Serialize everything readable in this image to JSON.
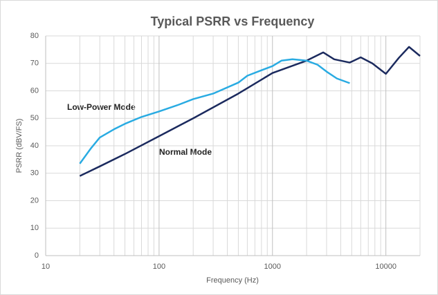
{
  "chart_data": {
    "type": "line",
    "title": "Typical PSRR vs Frequency",
    "x_label": "Frequency (Hz)",
    "y_label": "PSRR (dBV/FS)",
    "annotations": [
      "Low-Power Mode",
      "Normal Mode"
    ],
    "x_log": true,
    "grid": true,
    "minor_grid": true,
    "xlim": [
      10,
      20000
    ],
    "xticks": [
      10,
      100,
      1000,
      10000
    ],
    "ylim": [
      0,
      80
    ],
    "yticks": [
      0,
      10,
      20,
      30,
      40,
      50,
      60,
      70,
      80
    ],
    "series": [
      {
        "name": "Normal Mode",
        "color": "#1b2a5e",
        "x": [
          20,
          30,
          50,
          100,
          200,
          500,
          1000,
          2000,
          2800,
          3500,
          4800,
          6000,
          7600,
          10000,
          13000,
          16000,
          20000
        ],
        "values": [
          29,
          32.5,
          37,
          43.5,
          50,
          59,
          66.5,
          71,
          74,
          71.5,
          70.3,
          72.2,
          70,
          66.2,
          72,
          76,
          72.7
        ]
      },
      {
        "name": "Low-Power Mode",
        "color": "#29abe2",
        "x": [
          20,
          25,
          30,
          40,
          50,
          70,
          100,
          150,
          200,
          300,
          500,
          600,
          800,
          1000,
          1200,
          1500,
          2000,
          2500,
          3000,
          3700,
          4800
        ],
        "values": [
          33.5,
          39,
          43,
          46,
          48,
          50.5,
          52.5,
          55,
          57,
          59,
          63,
          65.5,
          67.5,
          69,
          71,
          71.5,
          71,
          69.5,
          67,
          64.5,
          62.8
        ]
      }
    ]
  }
}
